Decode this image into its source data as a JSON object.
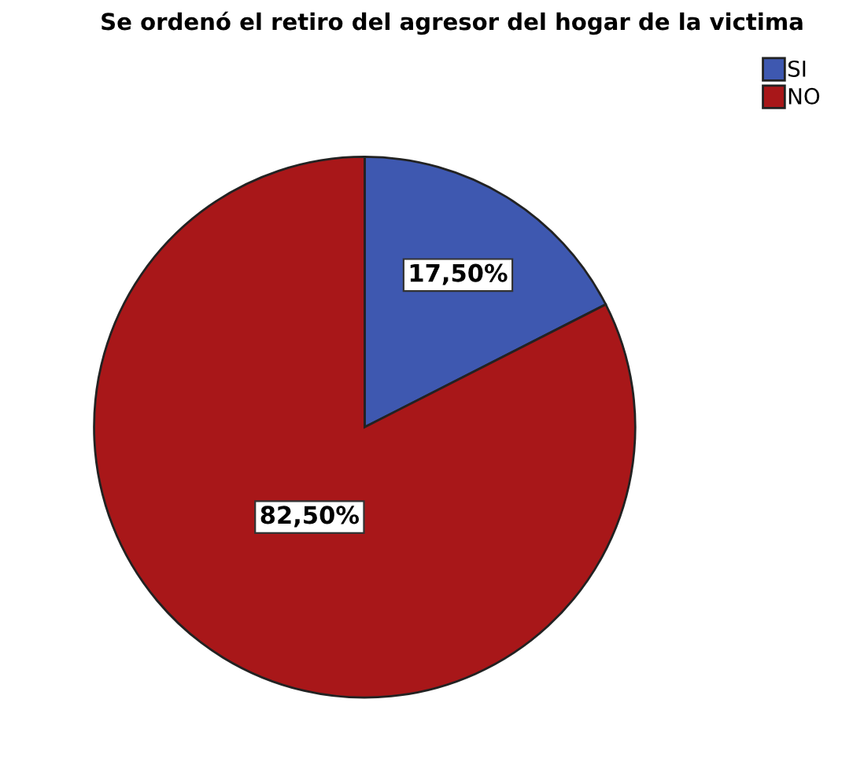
{
  "chart_data": {
    "type": "pie",
    "title": "Se ordenó el retiro del agresor del hogar de la victima",
    "categories": [
      "SI",
      "NO"
    ],
    "values": [
      17.5,
      82.5
    ],
    "colors": [
      "#3e58b0",
      "#a81719"
    ],
    "value_labels": [
      "17,50%",
      "82,50%"
    ],
    "legend": "top right"
  }
}
